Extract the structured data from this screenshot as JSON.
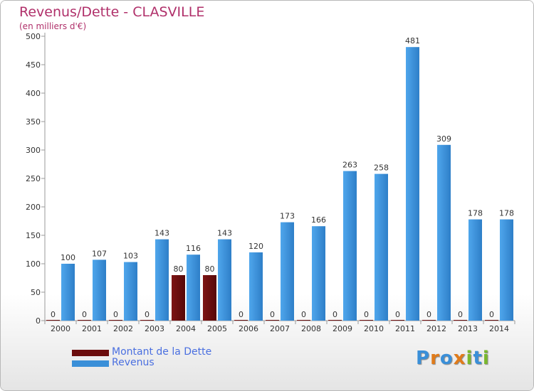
{
  "header": {
    "title": "Revenus/Dette - CLASVILLE",
    "subtitle": "(en milliers d'€)"
  },
  "colors": {
    "dette": "#6b0c0c",
    "revenus": "#3a8fd8",
    "title": "#b0306a",
    "legend_text": "#4a6fe0"
  },
  "legend": [
    {
      "label": "Montant de la Dette",
      "color": "#6b0c0c"
    },
    {
      "label": "Revenus",
      "color": "#3a8fd8"
    }
  ],
  "logo": {
    "text": "Proxiti"
  },
  "chart_data": {
    "type": "bar",
    "categories": [
      "2000",
      "2001",
      "2002",
      "2003",
      "2004",
      "2005",
      "2006",
      "2007",
      "2008",
      "2009",
      "2010",
      "2011",
      "2012",
      "2013",
      "2014"
    ],
    "series": [
      {
        "name": "Montant de la Dette",
        "values": [
          0,
          0,
          0,
          0,
          80,
          80,
          0,
          0,
          0,
          0,
          0,
          0,
          0,
          0,
          0
        ]
      },
      {
        "name": "Revenus",
        "values": [
          100,
          107,
          103,
          143,
          116,
          143,
          120,
          173,
          166,
          263,
          258,
          481,
          309,
          178,
          178
        ]
      }
    ],
    "ylim": [
      0,
      500
    ],
    "yticks": [
      0,
      50,
      100,
      150,
      200,
      250,
      300,
      350,
      400,
      450,
      500
    ],
    "grid": false,
    "legend_position": "bottom-left"
  }
}
